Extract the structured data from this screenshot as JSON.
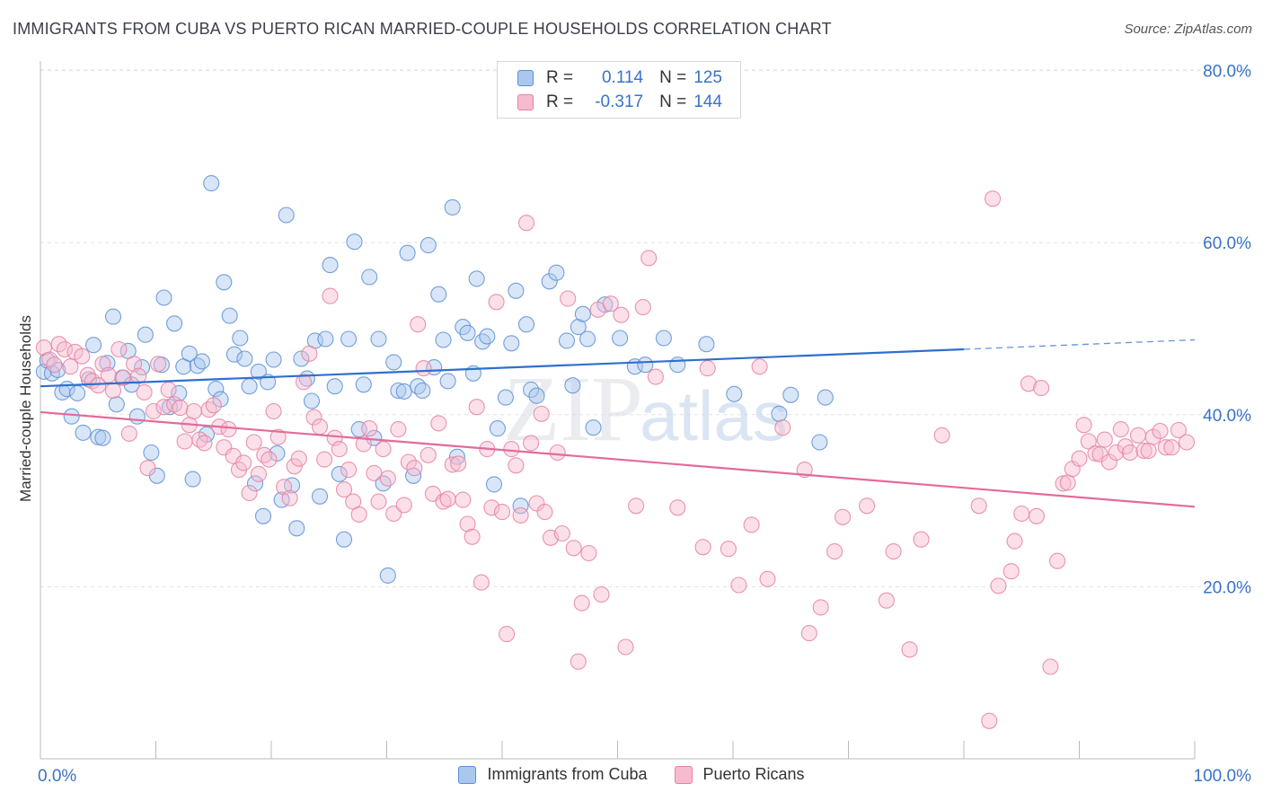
{
  "title": "IMMIGRANTS FROM CUBA VS PUERTO RICAN MARRIED-COUPLE HOUSEHOLDS CORRELATION CHART",
  "source": "Source: ZipAtlas.com",
  "watermark": {
    "zip": "ZIP",
    "atlas": "atlas"
  },
  "legend": {
    "r_label": "R =",
    "n_label": "N =",
    "rows": [
      {
        "r": "0.114",
        "n": "125",
        "color": "#3a72c9"
      },
      {
        "r": "-0.317",
        "n": "144",
        "color": "#e26b9a"
      }
    ]
  },
  "chart_data": {
    "type": "scatter",
    "title": "IMMIGRANTS FROM CUBA VS PUERTO RICAN MARRIED-COUPLE HOUSEHOLDS CORRELATION CHART",
    "xlabel": "",
    "ylabel": "Married-couple Households",
    "xlim": [
      0,
      100
    ],
    "ylim": [
      0,
      80
    ],
    "x_tick_labels": [
      "0.0%",
      "100.0%"
    ],
    "y_tick_labels": [
      "20.0%",
      "40.0%",
      "60.0%",
      "80.0%"
    ],
    "y_ticks": [
      20,
      40,
      60,
      80
    ],
    "grid": true,
    "legend_position": "bottom",
    "series": [
      {
        "name": "Immigrants from Cuba",
        "fill": "#aac8ee",
        "stroke": "#5b8fd6",
        "trend": {
          "x0": 0,
          "y0": 43.3,
          "x1": 80,
          "y1": 47.6,
          "dashed_to_x": 100,
          "dashed_to_y": 48.7,
          "color": "#2f6fcf"
        },
        "points": [
          [
            0.3,
            45.0
          ],
          [
            0.6,
            46.3
          ],
          [
            1.0,
            44.8
          ],
          [
            1.5,
            45.2
          ],
          [
            1.9,
            42.6
          ],
          [
            2.3,
            43.0
          ],
          [
            2.7,
            39.8
          ],
          [
            3.2,
            42.5
          ],
          [
            3.7,
            37.9
          ],
          [
            4.2,
            44.1
          ],
          [
            4.6,
            48.1
          ],
          [
            5.0,
            37.4
          ],
          [
            5.4,
            37.3
          ],
          [
            5.8,
            46.0
          ],
          [
            6.3,
            51.4
          ],
          [
            6.6,
            41.2
          ],
          [
            7.1,
            44.3
          ],
          [
            7.6,
            47.4
          ],
          [
            7.9,
            43.5
          ],
          [
            8.4,
            39.8
          ],
          [
            8.8,
            45.5
          ],
          [
            9.1,
            49.3
          ],
          [
            9.6,
            35.6
          ],
          [
            10.1,
            32.9
          ],
          [
            10.5,
            45.8
          ],
          [
            10.7,
            53.6
          ],
          [
            11.2,
            40.9
          ],
          [
            11.6,
            50.6
          ],
          [
            12.0,
            42.5
          ],
          [
            12.4,
            45.6
          ],
          [
            12.9,
            47.1
          ],
          [
            13.2,
            32.5
          ],
          [
            13.6,
            45.7
          ],
          [
            14.0,
            46.2
          ],
          [
            14.4,
            37.7
          ],
          [
            14.8,
            66.9
          ],
          [
            15.2,
            43.0
          ],
          [
            15.6,
            41.8
          ],
          [
            15.9,
            55.4
          ],
          [
            16.4,
            51.5
          ],
          [
            16.8,
            47.0
          ],
          [
            17.3,
            48.9
          ],
          [
            17.7,
            46.5
          ],
          [
            18.1,
            43.3
          ],
          [
            18.6,
            32.0
          ],
          [
            18.9,
            45.0
          ],
          [
            19.3,
            28.2
          ],
          [
            19.7,
            43.8
          ],
          [
            20.2,
            46.4
          ],
          [
            20.5,
            35.5
          ],
          [
            20.9,
            30.1
          ],
          [
            21.3,
            63.2
          ],
          [
            21.8,
            31.8
          ],
          [
            22.2,
            26.8
          ],
          [
            22.6,
            46.5
          ],
          [
            23.1,
            44.2
          ],
          [
            23.5,
            41.6
          ],
          [
            23.8,
            48.6
          ],
          [
            24.2,
            30.5
          ],
          [
            24.7,
            48.8
          ],
          [
            25.1,
            57.4
          ],
          [
            25.5,
            43.3
          ],
          [
            25.9,
            33.1
          ],
          [
            26.3,
            25.5
          ],
          [
            26.7,
            48.8
          ],
          [
            27.2,
            60.1
          ],
          [
            27.6,
            38.3
          ],
          [
            28.0,
            43.5
          ],
          [
            28.5,
            56.0
          ],
          [
            28.9,
            37.3
          ],
          [
            29.3,
            48.8
          ],
          [
            29.7,
            32.0
          ],
          [
            30.1,
            21.3
          ],
          [
            30.6,
            46.1
          ],
          [
            31.0,
            42.8
          ],
          [
            31.5,
            42.7
          ],
          [
            31.8,
            58.8
          ],
          [
            32.3,
            32.9
          ],
          [
            32.7,
            43.3
          ],
          [
            33.1,
            42.8
          ],
          [
            33.6,
            59.7
          ],
          [
            34.1,
            45.5
          ],
          [
            34.5,
            54.0
          ],
          [
            34.9,
            48.7
          ],
          [
            35.3,
            43.9
          ],
          [
            35.7,
            64.1
          ],
          [
            36.1,
            35.1
          ],
          [
            36.6,
            50.2
          ],
          [
            37.0,
            49.5
          ],
          [
            37.5,
            44.8
          ],
          [
            37.8,
            55.8
          ],
          [
            38.3,
            48.5
          ],
          [
            38.7,
            49.1
          ],
          [
            39.3,
            31.9
          ],
          [
            39.6,
            38.4
          ],
          [
            40.3,
            42.0
          ],
          [
            40.8,
            48.3
          ],
          [
            41.2,
            54.4
          ],
          [
            41.6,
            29.4
          ],
          [
            42.1,
            50.5
          ],
          [
            42.5,
            42.9
          ],
          [
            43.0,
            42.2
          ],
          [
            44.1,
            55.5
          ],
          [
            44.7,
            56.5
          ],
          [
            45.6,
            48.6
          ],
          [
            46.1,
            43.4
          ],
          [
            46.6,
            50.2
          ],
          [
            47.0,
            51.7
          ],
          [
            47.4,
            48.8
          ],
          [
            47.9,
            38.5
          ],
          [
            48.9,
            52.8
          ],
          [
            50.2,
            48.9
          ],
          [
            51.5,
            45.6
          ],
          [
            52.4,
            45.8
          ],
          [
            54.0,
            48.9
          ],
          [
            55.2,
            45.8
          ],
          [
            57.7,
            48.2
          ],
          [
            60.1,
            42.4
          ],
          [
            64.0,
            40.1
          ],
          [
            65.0,
            42.3
          ],
          [
            67.5,
            36.8
          ],
          [
            68.0,
            42.0
          ]
        ]
      },
      {
        "name": "Puerto Ricans",
        "fill": "#f6bbd0",
        "stroke": "#e6819f",
        "trend": {
          "x0": 0,
          "y0": 40.3,
          "x1": 100,
          "y1": 29.3,
          "color": "#e26b9a"
        },
        "points": [
          [
            0.3,
            47.8
          ],
          [
            0.8,
            46.4
          ],
          [
            1.2,
            45.8
          ],
          [
            1.6,
            48.2
          ],
          [
            2.1,
            47.6
          ],
          [
            2.6,
            45.6
          ],
          [
            3.0,
            47.3
          ],
          [
            3.6,
            46.8
          ],
          [
            4.1,
            44.6
          ],
          [
            4.5,
            43.9
          ],
          [
            5.0,
            43.4
          ],
          [
            5.4,
            45.9
          ],
          [
            5.9,
            44.6
          ],
          [
            6.3,
            42.8
          ],
          [
            6.8,
            47.6
          ],
          [
            7.2,
            44.3
          ],
          [
            7.7,
            37.8
          ],
          [
            8.1,
            45.9
          ],
          [
            8.5,
            44.5
          ],
          [
            9.0,
            42.6
          ],
          [
            9.3,
            33.8
          ],
          [
            9.8,
            40.4
          ],
          [
            10.2,
            45.9
          ],
          [
            10.7,
            40.9
          ],
          [
            11.1,
            42.9
          ],
          [
            11.6,
            41.2
          ],
          [
            12.1,
            40.8
          ],
          [
            12.5,
            36.9
          ],
          [
            12.9,
            38.8
          ],
          [
            13.3,
            40.4
          ],
          [
            13.8,
            37.1
          ],
          [
            14.2,
            36.7
          ],
          [
            14.6,
            40.6
          ],
          [
            15.0,
            41.1
          ],
          [
            15.5,
            38.6
          ],
          [
            15.9,
            36.2
          ],
          [
            16.3,
            38.3
          ],
          [
            16.7,
            35.2
          ],
          [
            17.2,
            33.6
          ],
          [
            17.6,
            34.4
          ],
          [
            18.1,
            30.9
          ],
          [
            18.5,
            36.8
          ],
          [
            18.9,
            33.1
          ],
          [
            19.4,
            35.3
          ],
          [
            19.8,
            34.8
          ],
          [
            20.2,
            40.4
          ],
          [
            20.6,
            37.4
          ],
          [
            21.1,
            31.6
          ],
          [
            21.6,
            30.3
          ],
          [
            22.0,
            34.0
          ],
          [
            22.4,
            34.9
          ],
          [
            22.8,
            43.8
          ],
          [
            23.3,
            47.1
          ],
          [
            23.7,
            39.7
          ],
          [
            24.2,
            38.6
          ],
          [
            24.6,
            34.8
          ],
          [
            25.1,
            53.8
          ],
          [
            25.5,
            37.3
          ],
          [
            25.9,
            36.0
          ],
          [
            26.3,
            31.3
          ],
          [
            26.7,
            33.6
          ],
          [
            27.1,
            29.9
          ],
          [
            27.6,
            28.4
          ],
          [
            28.0,
            36.6
          ],
          [
            28.5,
            38.4
          ],
          [
            28.9,
            33.2
          ],
          [
            29.3,
            29.9
          ],
          [
            29.7,
            36.0
          ],
          [
            30.1,
            32.6
          ],
          [
            30.6,
            28.5
          ],
          [
            31.0,
            38.3
          ],
          [
            31.5,
            29.5
          ],
          [
            31.9,
            34.5
          ],
          [
            32.4,
            33.8
          ],
          [
            32.7,
            50.5
          ],
          [
            33.2,
            45.4
          ],
          [
            33.6,
            35.3
          ],
          [
            34.0,
            30.8
          ],
          [
            34.5,
            39.0
          ],
          [
            34.9,
            29.9
          ],
          [
            35.3,
            30.2
          ],
          [
            35.7,
            34.2
          ],
          [
            36.2,
            34.3
          ],
          [
            36.6,
            30.1
          ],
          [
            37.0,
            27.3
          ],
          [
            37.4,
            25.8
          ],
          [
            37.8,
            40.9
          ],
          [
            38.2,
            20.5
          ],
          [
            38.7,
            36.0
          ],
          [
            39.1,
            29.2
          ],
          [
            39.5,
            53.1
          ],
          [
            40.0,
            28.7
          ],
          [
            40.4,
            14.5
          ],
          [
            40.8,
            36.0
          ],
          [
            41.2,
            34.1
          ],
          [
            41.6,
            28.3
          ],
          [
            42.1,
            62.3
          ],
          [
            42.5,
            36.7
          ],
          [
            43.0,
            29.7
          ],
          [
            43.4,
            40.1
          ],
          [
            43.7,
            28.7
          ],
          [
            44.2,
            25.7
          ],
          [
            44.8,
            35.6
          ],
          [
            45.2,
            26.2
          ],
          [
            45.7,
            53.5
          ],
          [
            46.2,
            24.5
          ],
          [
            46.6,
            11.3
          ],
          [
            46.9,
            18.1
          ],
          [
            47.5,
            23.9
          ],
          [
            48.3,
            52.2
          ],
          [
            48.6,
            19.1
          ],
          [
            49.4,
            52.9
          ],
          [
            50.3,
            51.6
          ],
          [
            50.7,
            13.0
          ],
          [
            51.6,
            29.4
          ],
          [
            52.2,
            52.5
          ],
          [
            52.7,
            58.2
          ],
          [
            53.3,
            44.4
          ],
          [
            55.2,
            29.2
          ],
          [
            57.4,
            24.6
          ],
          [
            57.8,
            45.4
          ],
          [
            59.6,
            24.4
          ],
          [
            60.5,
            20.2
          ],
          [
            61.6,
            27.2
          ],
          [
            62.3,
            45.6
          ],
          [
            63.0,
            20.9
          ],
          [
            64.3,
            38.5
          ],
          [
            66.2,
            33.6
          ],
          [
            66.6,
            14.6
          ],
          [
            67.6,
            17.6
          ],
          [
            68.8,
            24.1
          ],
          [
            69.5,
            28.1
          ],
          [
            71.6,
            29.4
          ],
          [
            73.3,
            18.4
          ],
          [
            73.9,
            24.1
          ],
          [
            75.3,
            12.7
          ],
          [
            76.3,
            25.5
          ],
          [
            78.1,
            37.6
          ],
          [
            81.3,
            29.4
          ],
          [
            82.2,
            4.4
          ],
          [
            82.5,
            65.1
          ],
          [
            83.0,
            20.1
          ],
          [
            84.1,
            21.8
          ],
          [
            84.4,
            25.3
          ],
          [
            85.0,
            28.5
          ],
          [
            85.6,
            43.6
          ],
          [
            86.3,
            28.2
          ],
          [
            86.7,
            43.1
          ],
          [
            87.5,
            10.7
          ],
          [
            88.1,
            23.0
          ],
          [
            88.6,
            32.0
          ],
          [
            89.0,
            32.1
          ],
          [
            89.4,
            33.7
          ],
          [
            90.0,
            34.9
          ],
          [
            90.4,
            38.8
          ],
          [
            90.8,
            36.9
          ],
          [
            91.4,
            35.5
          ],
          [
            91.8,
            35.4
          ],
          [
            92.2,
            37.1
          ],
          [
            92.6,
            34.5
          ],
          [
            93.2,
            35.6
          ],
          [
            93.6,
            38.3
          ],
          [
            94.0,
            36.3
          ],
          [
            94.4,
            35.6
          ],
          [
            95.1,
            37.6
          ],
          [
            95.6,
            35.8
          ],
          [
            96.0,
            35.8
          ],
          [
            96.4,
            37.4
          ],
          [
            97.0,
            38.1
          ],
          [
            97.5,
            36.2
          ],
          [
            98.0,
            36.2
          ],
          [
            98.6,
            38.2
          ],
          [
            99.3,
            36.8
          ]
        ]
      }
    ]
  },
  "bottom_legend": [
    "Immigrants from Cuba",
    "Puerto Ricans"
  ]
}
